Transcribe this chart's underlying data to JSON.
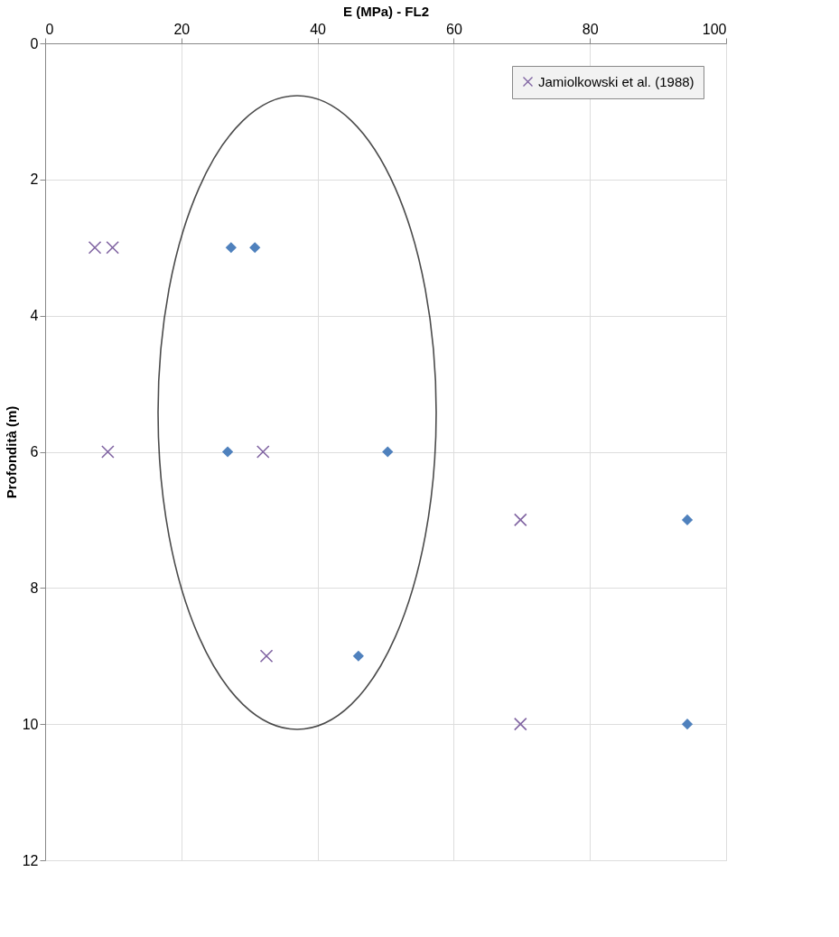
{
  "chart_data": {
    "type": "scatter",
    "xlabel": "E (MPa) - FL2",
    "ylabel": "Profondità (m)",
    "xlim": [
      0,
      100
    ],
    "xticks": [
      0,
      20,
      40,
      60,
      80,
      100
    ],
    "ylim": [
      12,
      0
    ],
    "yticks": [
      0,
      2,
      4,
      6,
      8,
      10,
      12
    ],
    "grid": true,
    "legend": "top right",
    "series": [
      {
        "color": "#4f81bd",
        "marker": "diamond",
        "x": [
          27.3,
          30.8,
          26.8,
          50.3,
          94.3,
          46.0,
          94.3
        ],
        "values": [
          3,
          3,
          6,
          6,
          7,
          9,
          10
        ]
      },
      {
        "name": "Jamiolkowski et al. (1988)",
        "color": "#8064a2",
        "marker": "cross",
        "x": [
          7.3,
          9.9,
          9.2,
          32.0,
          69.8,
          32.5,
          69.8
        ],
        "values": [
          3,
          3,
          6,
          6,
          7,
          9,
          10
        ]
      }
    ]
  }
}
